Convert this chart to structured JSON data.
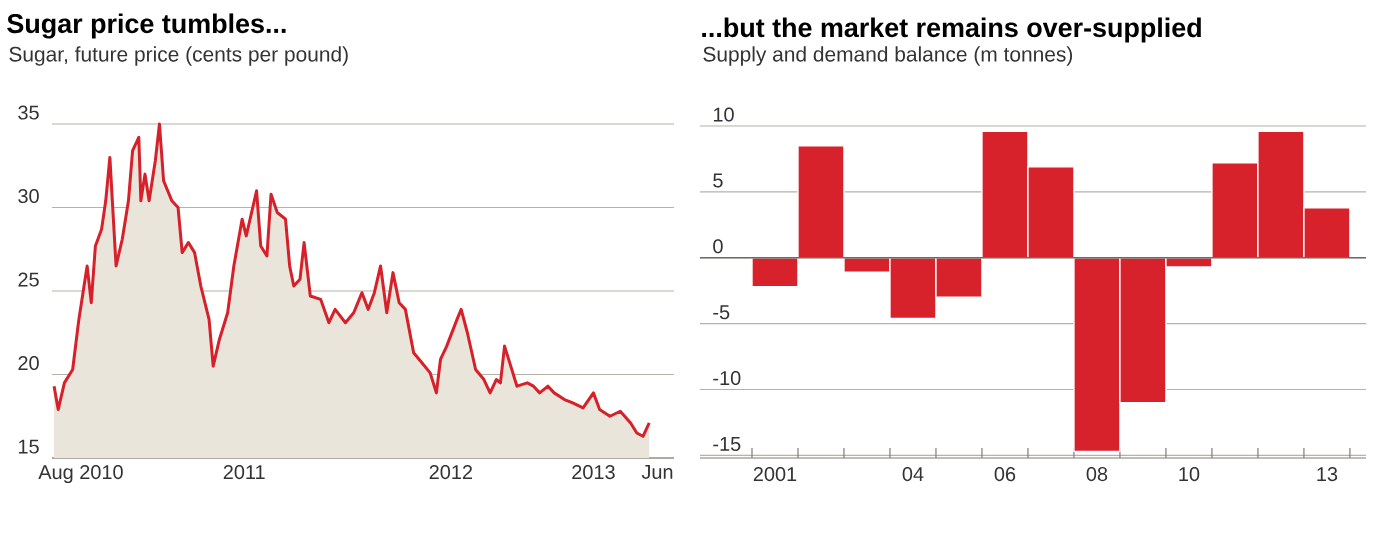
{
  "chart_data": [
    {
      "type": "area",
      "title": "Sugar price tumbles...",
      "subtitle": "Sugar, future price (cents per pound)",
      "color": "#d6202a",
      "x": [
        2010.55,
        2010.57,
        2010.6,
        2010.64,
        2010.67,
        2010.69,
        2010.71,
        2010.73,
        2010.75,
        2010.78,
        2010.8,
        2010.82,
        2010.85,
        2010.88,
        2010.91,
        2010.93,
        2010.96,
        2010.97,
        2010.99,
        2011.01,
        2011.04,
        2011.06,
        2011.08,
        2011.12,
        2011.15,
        2011.17,
        2011.2,
        2011.23,
        2011.26,
        2011.3,
        2011.32,
        2011.35,
        2011.39,
        2011.42,
        2011.46,
        2011.48,
        2011.53,
        2011.55,
        2011.58,
        2011.6,
        2011.63,
        2011.67,
        2011.69,
        2011.71,
        2011.74,
        2011.76,
        2011.79,
        2011.84,
        2011.88,
        2011.91,
        2011.96,
        2012.0,
        2012.04,
        2012.07,
        2012.1,
        2012.13,
        2012.16,
        2012.19,
        2012.22,
        2012.25,
        2012.29,
        2012.33,
        2012.37,
        2012.4,
        2012.42,
        2012.45,
        2012.5,
        2012.52,
        2012.55,
        2012.59,
        2012.63,
        2012.66,
        2012.69,
        2012.71,
        2012.73,
        2012.76,
        2012.79,
        2012.84,
        2012.87,
        2012.9,
        2012.94,
        2012.97,
        2013.02,
        2013.06,
        2013.11,
        2013.16,
        2013.19,
        2013.24,
        2013.29,
        2013.34,
        2013.37,
        2013.4,
        2013.43
      ],
      "values": [
        19.3,
        17.9,
        19.5,
        20.3,
        23.3,
        24.9,
        26.5,
        24.3,
        27.7,
        28.7,
        30.4,
        33.0,
        26.5,
        28.1,
        30.4,
        33.4,
        34.2,
        30.4,
        32.0,
        30.4,
        32.8,
        35.0,
        31.6,
        30.4,
        30.0,
        27.3,
        27.9,
        27.3,
        25.3,
        23.3,
        20.5,
        22.1,
        23.7,
        26.5,
        29.3,
        28.3,
        31.0,
        27.7,
        27.1,
        30.8,
        29.7,
        29.3,
        26.5,
        25.3,
        25.7,
        27.9,
        24.7,
        24.5,
        23.1,
        23.9,
        23.1,
        23.7,
        24.9,
        23.9,
        24.9,
        26.5,
        23.7,
        26.1,
        24.3,
        23.9,
        21.3,
        20.7,
        20.1,
        18.9,
        20.9,
        21.7,
        23.3,
        23.9,
        22.5,
        20.3,
        19.7,
        18.9,
        19.7,
        19.5,
        21.7,
        20.5,
        19.3,
        19.5,
        19.3,
        18.9,
        19.3,
        18.9,
        18.5,
        18.3,
        18.0,
        18.9,
        17.9,
        17.5,
        17.8,
        17.1,
        16.5,
        16.3,
        17.1
      ],
      "xlim": [
        2010.54,
        2013.55
      ],
      "ylim": [
        15,
        35
      ],
      "xticks": [
        {
          "value": 2010.68,
          "label": "Aug 2010"
        },
        {
          "value": 2011.47,
          "label": "2011"
        },
        {
          "value": 2012.47,
          "label": "2012"
        },
        {
          "value": 2013.16,
          "label": "2013"
        },
        {
          "value": 2013.47,
          "label": "Jun"
        }
      ],
      "yticks": [
        15,
        20,
        25,
        30,
        35
      ],
      "grid": "y"
    },
    {
      "type": "bar",
      "title": "...but the market remains over-supplied",
      "subtitle": "Supply and demand balance (m tonnes)",
      "color": "#d7222c",
      "categories": [
        "2001",
        null,
        null,
        "04",
        null,
        "06",
        null,
        "08",
        null,
        "10",
        null,
        null,
        "13"
      ],
      "values": [
        -2.2,
        8.5,
        -1.1,
        -4.6,
        -3.0,
        9.6,
        6.9,
        -14.7,
        -11.0,
        -0.7,
        7.2,
        9.6,
        3.8
      ],
      "ylim": [
        -15.2,
        10
      ],
      "yticks": [
        -15,
        -10,
        -5,
        0,
        5,
        10
      ],
      "grid": "y"
    }
  ]
}
